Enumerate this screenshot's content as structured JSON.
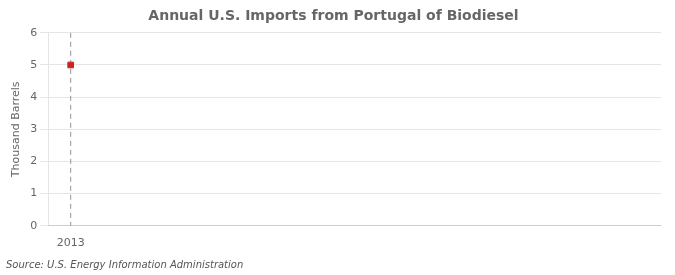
{
  "chart_data": {
    "type": "scatter",
    "title": "Annual U.S. Imports from Portugal of Biodiesel",
    "ylabel": "Thousand Barrels",
    "source": "Source: U.S. Energy Information Administration",
    "x": [
      2013
    ],
    "values": [
      5
    ],
    "color": "#cc2222",
    "marker": "square",
    "vlines": [
      2013
    ],
    "xlim": [
      2012.6,
      2023.5
    ],
    "ylim": [
      0,
      6
    ],
    "xticks": [
      2013
    ],
    "yticks": [
      0,
      1,
      2,
      3,
      4,
      5,
      6
    ],
    "grid": "y"
  }
}
